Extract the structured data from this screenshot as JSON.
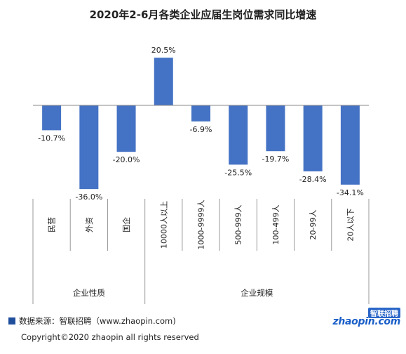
{
  "chart_data": {
    "type": "bar",
    "title": "2020年2-6月各类企业应届生岗位需求同比增速",
    "categories": [
      "民营",
      "外资",
      "国企",
      "10000人以上",
      "1000-9999人",
      "500-999人",
      "100-499人",
      "20-99人",
      "20人以下"
    ],
    "values": [
      -10.7,
      -36.0,
      -20.0,
      20.5,
      -6.9,
      -25.5,
      -19.7,
      -28.4,
      -34.1
    ],
    "value_labels": [
      "-10.7%",
      "-36.0%",
      "-20.0%",
      "20.5%",
      "-6.9%",
      "-25.5%",
      "-19.7%",
      "-28.4%",
      "-34.1%"
    ],
    "groups": [
      {
        "label": "企业性质",
        "count": 3
      },
      {
        "label": "企业规模",
        "count": 6
      }
    ],
    "bar_color": "#4472c4",
    "ylim": [
      -36.0,
      20.5
    ]
  },
  "footer": {
    "source": "数据来源：智联招聘（www.zhaopin.com)",
    "copyright": "Copyright©2020 zhaopin all rights reserved",
    "logo_cn": "智联招聘",
    "logo_en": "zhaopin.com"
  }
}
